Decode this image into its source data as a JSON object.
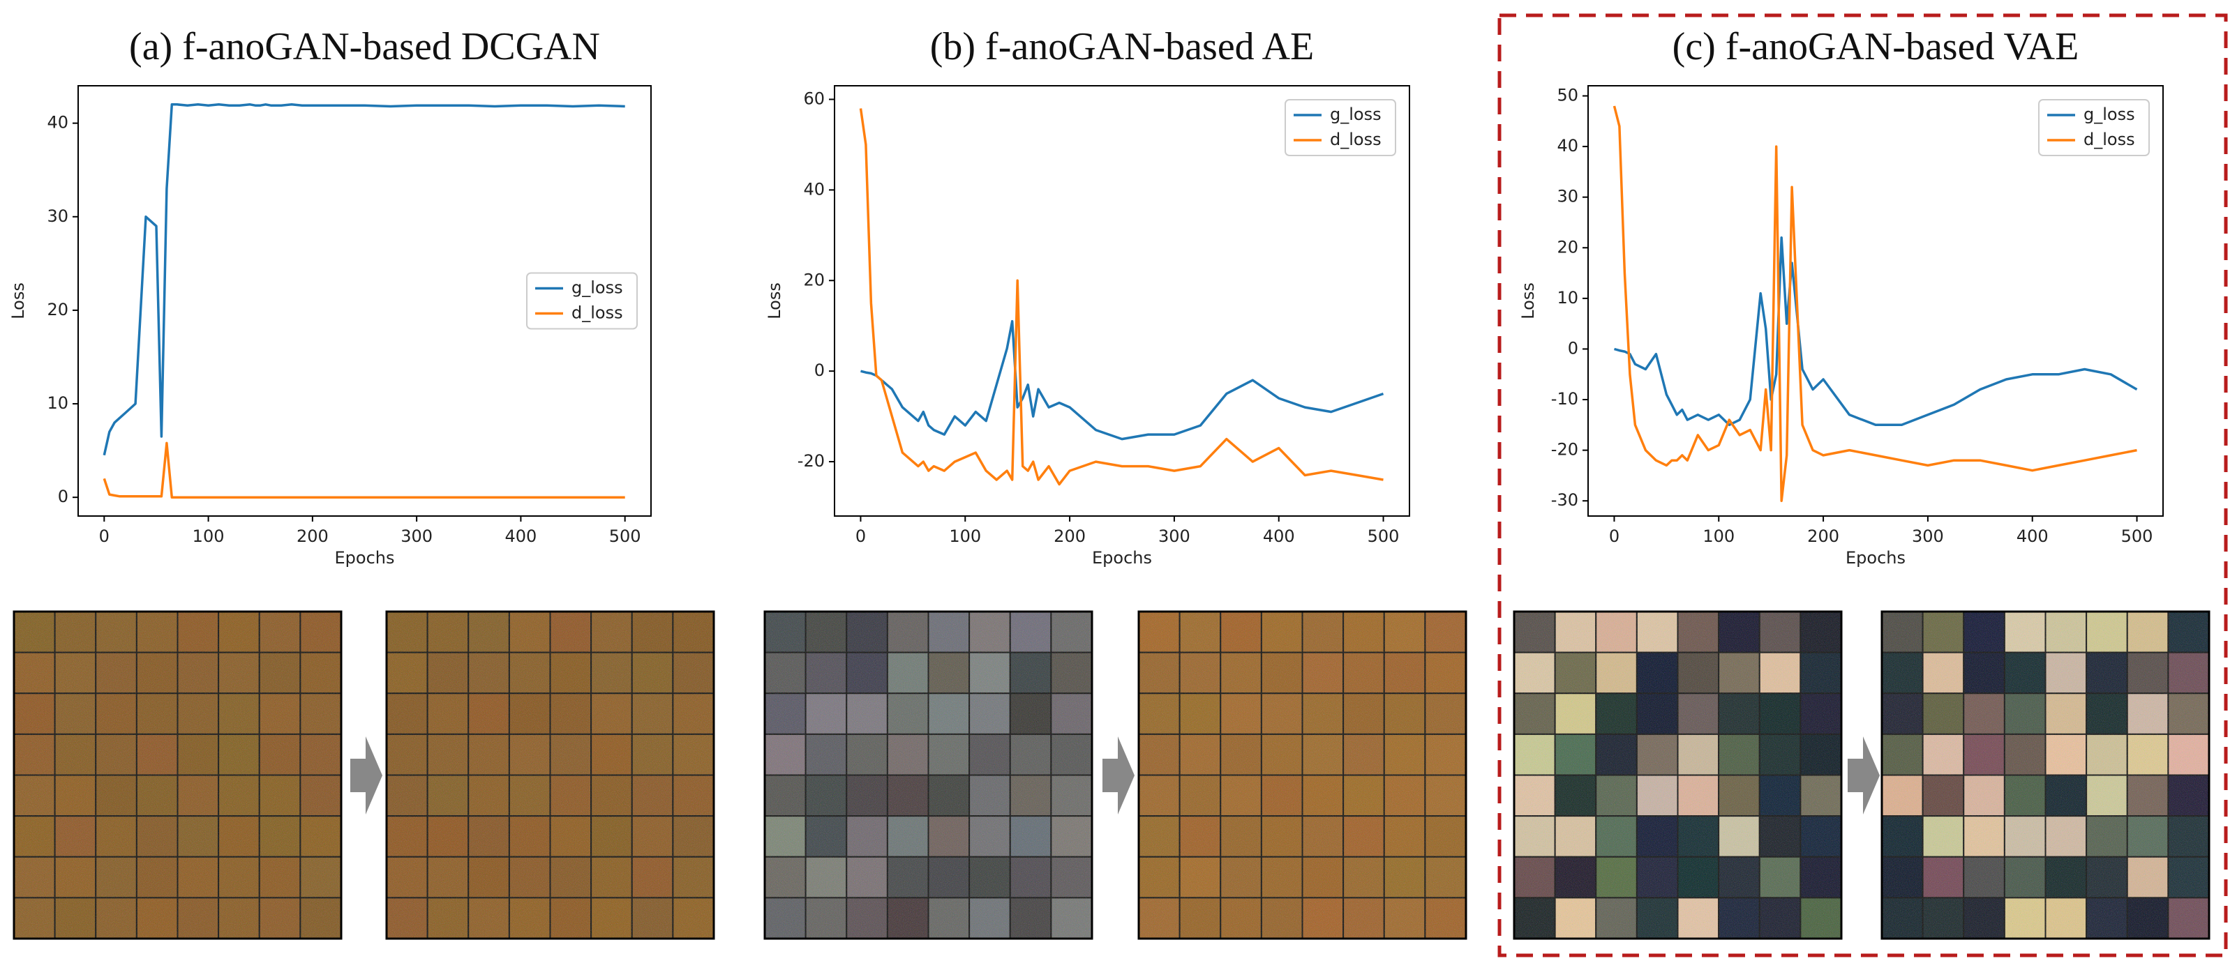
{
  "chart_data": [
    {
      "type": "line",
      "title": "(a) f-anoGAN-based DCGAN",
      "x_label": "Epochs",
      "y_label": "Loss",
      "legend": "center right",
      "x": [
        0,
        5,
        10,
        15,
        20,
        30,
        40,
        50,
        55,
        60,
        65,
        70,
        80,
        90,
        100,
        110,
        120,
        130,
        140,
        145,
        150,
        155,
        160,
        165,
        170,
        180,
        190,
        200,
        225,
        250,
        275,
        300,
        325,
        350,
        375,
        400,
        425,
        450,
        475,
        500
      ],
      "series": [
        {
          "name": "g_loss",
          "color": "#1f77b4",
          "values": [
            4.5,
            7,
            8,
            8.5,
            9,
            10,
            30,
            29,
            6.5,
            33,
            42,
            42,
            41.9,
            42,
            41.9,
            42,
            41.9,
            41.9,
            42,
            41.9,
            41.9,
            42,
            41.9,
            41.9,
            41.9,
            42,
            41.9,
            41.9,
            41.9,
            41.9,
            41.8,
            41.9,
            41.9,
            41.9,
            41.8,
            41.9,
            41.9,
            41.8,
            41.9,
            41.8
          ]
        },
        {
          "name": "d_loss",
          "color": "#ff7f0e",
          "values": [
            2,
            0.3,
            0.2,
            0.1,
            0.1,
            0.1,
            0.1,
            0.1,
            0.1,
            5.8,
            0,
            0,
            0,
            0,
            0,
            0,
            0,
            0,
            0,
            0,
            0,
            0,
            0,
            0,
            0,
            0,
            0,
            0,
            0,
            0,
            0,
            0,
            0,
            0,
            0,
            0,
            0,
            0,
            0,
            0
          ]
        }
      ],
      "xlim": [
        -25,
        525
      ],
      "ylim": [
        -2,
        44
      ],
      "xticks": [
        0,
        100,
        200,
        300,
        400,
        500
      ],
      "yticks": [
        0,
        10,
        20,
        30,
        40
      ]
    },
    {
      "type": "line",
      "title": "(b) f-anoGAN-based AE",
      "x_label": "Epochs",
      "y_label": "Loss",
      "legend": "upper right",
      "x": [
        0,
        5,
        10,
        15,
        20,
        30,
        40,
        50,
        55,
        60,
        65,
        70,
        80,
        90,
        100,
        110,
        120,
        130,
        140,
        145,
        150,
        155,
        160,
        165,
        170,
        180,
        190,
        200,
        225,
        250,
        275,
        300,
        325,
        350,
        375,
        400,
        425,
        450,
        475,
        500
      ],
      "series": [
        {
          "name": "g_loss",
          "color": "#1f77b4",
          "values": [
            0,
            -0.3,
            -0.5,
            -1,
            -2,
            -4,
            -8,
            -10,
            -11,
            -9,
            -12,
            -13,
            -14,
            -10,
            -12,
            -9,
            -11,
            -3,
            5,
            11,
            -8,
            -6,
            -3,
            -10,
            -4,
            -8,
            -7,
            -8,
            -13,
            -15,
            -14,
            -14,
            -12,
            -5,
            -2,
            -6,
            -8,
            -9,
            -7,
            -5
          ]
        },
        {
          "name": "d_loss",
          "color": "#ff7f0e",
          "values": [
            58,
            50,
            15,
            -1,
            -2,
            -10,
            -18,
            -20,
            -21,
            -20,
            -22,
            -21,
            -22,
            -20,
            -19,
            -18,
            -22,
            -24,
            -22,
            -24,
            20,
            -21,
            -22,
            -20,
            -24,
            -21,
            -25,
            -22,
            -20,
            -21,
            -21,
            -22,
            -21,
            -15,
            -20,
            -17,
            -23,
            -22,
            -23,
            -24
          ]
        }
      ],
      "xlim": [
        -25,
        525
      ],
      "ylim": [
        -32,
        63
      ],
      "xticks": [
        0,
        100,
        200,
        300,
        400,
        500
      ],
      "yticks": [
        -20,
        0,
        20,
        40,
        60
      ]
    },
    {
      "type": "line",
      "title": "(c) f-anoGAN-based VAE",
      "x_label": "Epochs",
      "y_label": "Loss",
      "legend": "upper right",
      "x": [
        0,
        5,
        10,
        15,
        20,
        30,
        40,
        50,
        55,
        60,
        65,
        70,
        80,
        90,
        100,
        110,
        120,
        130,
        140,
        145,
        150,
        155,
        160,
        165,
        170,
        180,
        190,
        200,
        225,
        250,
        275,
        300,
        325,
        350,
        375,
        400,
        425,
        450,
        475,
        500
      ],
      "series": [
        {
          "name": "g_loss",
          "color": "#1f77b4",
          "values": [
            0,
            -0.3,
            -0.5,
            -1,
            -3,
            -4,
            -1,
            -9,
            -11,
            -13,
            -12,
            -14,
            -13,
            -14,
            -13,
            -15,
            -14,
            -10,
            11,
            4,
            -10,
            -5,
            22,
            5,
            17,
            -4,
            -8,
            -6,
            -13,
            -15,
            -15,
            -13,
            -11,
            -8,
            -6,
            -5,
            -5,
            -4,
            -5,
            -8
          ]
        },
        {
          "name": "d_loss",
          "color": "#ff7f0e",
          "values": [
            48,
            44,
            15,
            -5,
            -15,
            -20,
            -22,
            -23,
            -22,
            -22,
            -21,
            -22,
            -17,
            -20,
            -19,
            -14,
            -17,
            -16,
            -20,
            -8,
            -20,
            40,
            -30,
            -21,
            32,
            -15,
            -20,
            -21,
            -20,
            -21,
            -22,
            -23,
            -22,
            -22,
            -23,
            -24,
            -23,
            -22,
            -21,
            -20
          ]
        }
      ],
      "xlim": [
        -25,
        525
      ],
      "ylim": [
        -33,
        52
      ],
      "xticks": [
        0,
        100,
        200,
        300,
        400,
        500
      ],
      "yticks": [
        -30,
        -20,
        -10,
        0,
        10,
        20,
        30,
        40,
        50
      ]
    }
  ]
}
